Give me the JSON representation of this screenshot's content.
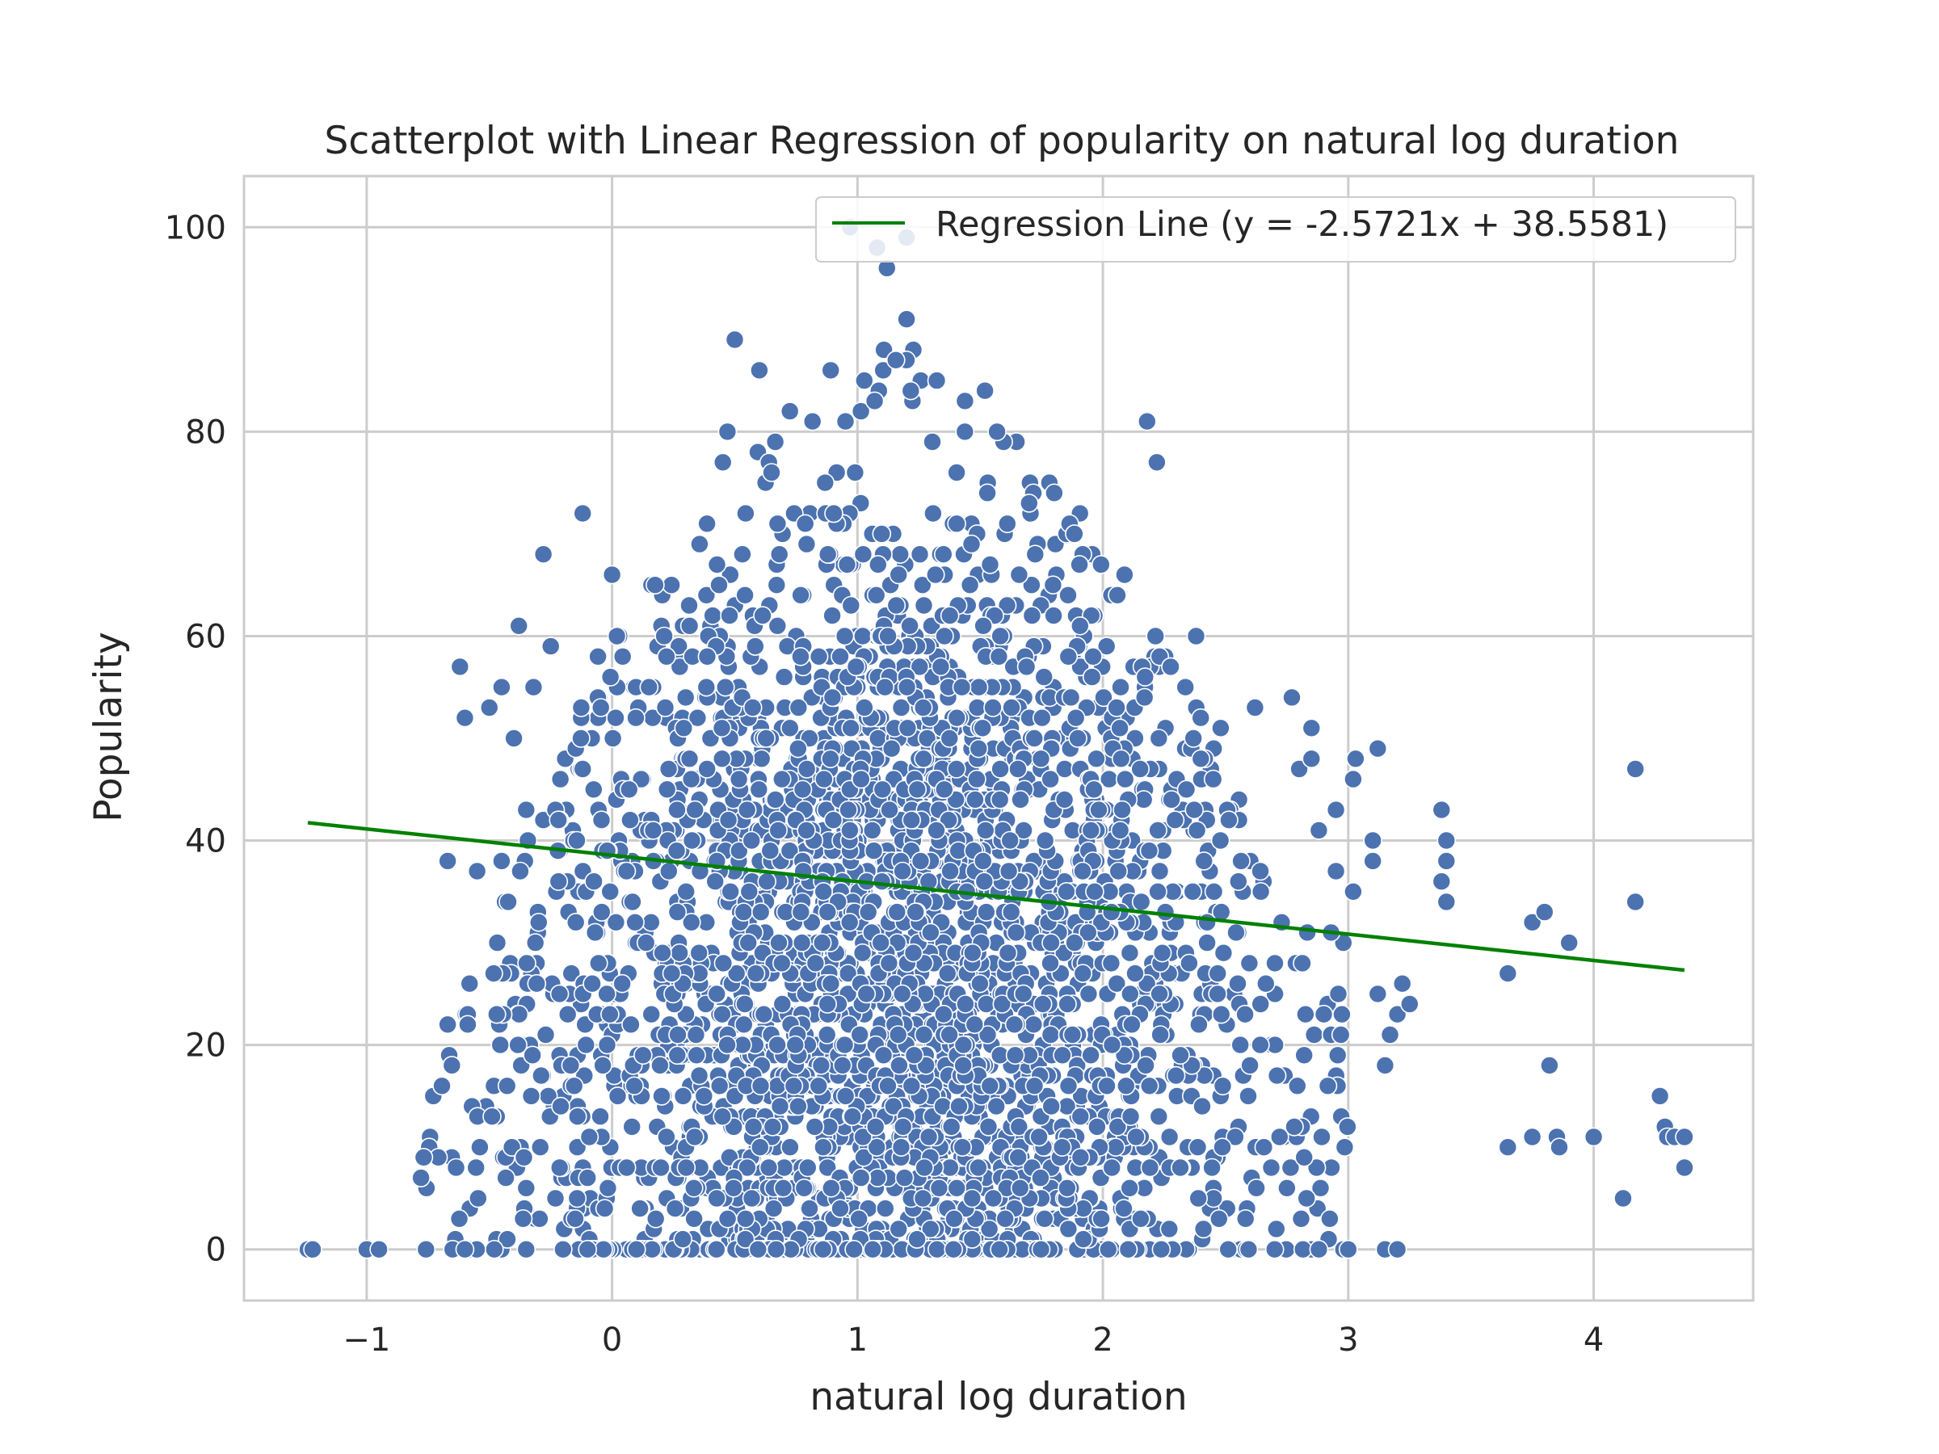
{
  "chart_data": {
    "type": "scatter",
    "title": "Scatterplot with Linear Regression of popularity on natural log duration",
    "xlabel": "natural log duration",
    "ylabel": "Popularity",
    "xlim": [
      -1.5,
      4.65
    ],
    "ylim": [
      -5,
      105
    ],
    "x_ticks": [
      -1,
      0,
      1,
      2,
      3,
      4
    ],
    "x_tick_labels": [
      "−1",
      "0",
      "1",
      "2",
      "3",
      "4"
    ],
    "y_ticks": [
      0,
      20,
      40,
      60,
      80,
      100
    ],
    "y_tick_labels": [
      "0",
      "20",
      "40",
      "60",
      "80",
      "100"
    ],
    "grid": true,
    "legend_position": "top-right",
    "colors": {
      "points": "#4c72b0",
      "regression": "#008000",
      "grid": "#cccccc",
      "frame": "#cccccc"
    },
    "regression": {
      "name": "Regression Line (y = -2.5721x + 38.5581)",
      "slope": -2.5721,
      "intercept": 38.5581,
      "x_range": [
        -1.24,
        4.37
      ]
    },
    "density_model": {
      "x_center": 1.15,
      "x_spread": 0.75,
      "y_center": 30,
      "y_spread": 22,
      "envelope": [
        [
          -0.75,
          20
        ],
        [
          -0.5,
          30
        ],
        [
          0.0,
          62
        ],
        [
          0.5,
          80
        ],
        [
          0.9,
          88
        ],
        [
          1.2,
          92
        ],
        [
          1.5,
          86
        ],
        [
          2.0,
          70
        ],
        [
          2.3,
          58
        ],
        [
          2.6,
          42
        ],
        [
          2.9,
          32
        ],
        [
          3.0,
          28
        ]
      ],
      "count": 3200
    },
    "sparse_points": [
      {
        "x": -1.24,
        "y": 0
      },
      {
        "x": -1.22,
        "y": 0
      },
      {
        "x": -1.0,
        "y": 0
      },
      {
        "x": -0.95,
        "y": 0
      },
      {
        "x": -0.65,
        "y": 0
      },
      {
        "x": -0.6,
        "y": 0
      },
      {
        "x": -0.48,
        "y": 0
      },
      {
        "x": -0.35,
        "y": 0
      },
      {
        "x": -0.2,
        "y": 0
      },
      {
        "x": -0.1,
        "y": 0
      },
      {
        "x": -0.67,
        "y": 38
      },
      {
        "x": -0.67,
        "y": 22
      },
      {
        "x": -0.62,
        "y": 57
      },
      {
        "x": -0.6,
        "y": 52
      },
      {
        "x": -0.5,
        "y": 53
      },
      {
        "x": -0.45,
        "y": 55
      },
      {
        "x": -0.4,
        "y": 50
      },
      {
        "x": -0.38,
        "y": 61
      },
      {
        "x": -0.32,
        "y": 55
      },
      {
        "x": -0.28,
        "y": 68
      },
      {
        "x": -0.25,
        "y": 59
      },
      {
        "x": -0.12,
        "y": 72
      },
      {
        "x": -0.35,
        "y": 43
      },
      {
        "x": -0.35,
        "y": 6
      },
      {
        "x": -0.15,
        "y": 3
      },
      {
        "x": -0.1,
        "y": 7
      },
      {
        "x": -0.55,
        "y": 37
      },
      {
        "x": -0.45,
        "y": 38
      },
      {
        "x": 0.0,
        "y": 66
      },
      {
        "x": 0.47,
        "y": 80
      },
      {
        "x": 0.5,
        "y": 89
      },
      {
        "x": 0.6,
        "y": 86
      },
      {
        "x": 0.97,
        "y": 100
      },
      {
        "x": 1.08,
        "y": 98
      },
      {
        "x": 1.2,
        "y": 99
      },
      {
        "x": 1.12,
        "y": 96
      },
      {
        "x": 2.18,
        "y": 81
      },
      {
        "x": 2.22,
        "y": 77
      },
      {
        "x": 2.38,
        "y": 60
      },
      {
        "x": 2.48,
        "y": 51
      },
      {
        "x": 2.62,
        "y": 53
      },
      {
        "x": 2.77,
        "y": 54
      },
      {
        "x": 2.85,
        "y": 51
      },
      {
        "x": 2.8,
        "y": 47
      },
      {
        "x": 2.85,
        "y": 48
      },
      {
        "x": 2.88,
        "y": 41
      },
      {
        "x": 2.95,
        "y": 43
      },
      {
        "x": 3.02,
        "y": 46
      },
      {
        "x": 3.03,
        "y": 48
      },
      {
        "x": 3.12,
        "y": 49
      },
      {
        "x": 3.1,
        "y": 40
      },
      {
        "x": 3.1,
        "y": 38
      },
      {
        "x": 3.02,
        "y": 35
      },
      {
        "x": 2.95,
        "y": 37
      },
      {
        "x": 2.98,
        "y": 30
      },
      {
        "x": 2.93,
        "y": 31
      },
      {
        "x": 2.9,
        "y": 23
      },
      {
        "x": 2.93,
        "y": 21
      },
      {
        "x": 2.97,
        "y": 21
      },
      {
        "x": 2.82,
        "y": 19
      },
      {
        "x": 2.78,
        "y": 12
      },
      {
        "x": 2.72,
        "y": 11
      },
      {
        "x": 2.82,
        "y": 9
      },
      {
        "x": 2.75,
        "y": 6
      },
      {
        "x": 2.83,
        "y": 5
      },
      {
        "x": 2.92,
        "y": 1
      },
      {
        "x": 2.88,
        "y": 0
      },
      {
        "x": 2.98,
        "y": 0
      },
      {
        "x": 3.0,
        "y": 0
      },
      {
        "x": 2.7,
        "y": 0
      },
      {
        "x": 3.15,
        "y": 0
      },
      {
        "x": 3.2,
        "y": 0
      },
      {
        "x": 3.12,
        "y": 25
      },
      {
        "x": 3.17,
        "y": 21
      },
      {
        "x": 3.15,
        "y": 18
      },
      {
        "x": 3.2,
        "y": 23
      },
      {
        "x": 3.22,
        "y": 26
      },
      {
        "x": 3.25,
        "y": 24
      },
      {
        "x": 3.38,
        "y": 43
      },
      {
        "x": 3.4,
        "y": 40
      },
      {
        "x": 3.4,
        "y": 38
      },
      {
        "x": 3.38,
        "y": 36
      },
      {
        "x": 3.4,
        "y": 34
      },
      {
        "x": 3.65,
        "y": 27
      },
      {
        "x": 3.65,
        "y": 10
      },
      {
        "x": 3.75,
        "y": 11
      },
      {
        "x": 3.75,
        "y": 32
      },
      {
        "x": 3.8,
        "y": 33
      },
      {
        "x": 3.82,
        "y": 18
      },
      {
        "x": 3.85,
        "y": 11
      },
      {
        "x": 3.86,
        "y": 10
      },
      {
        "x": 3.9,
        "y": 30
      },
      {
        "x": 4.0,
        "y": 11
      },
      {
        "x": 4.12,
        "y": 5
      },
      {
        "x": 4.17,
        "y": 47
      },
      {
        "x": 4.17,
        "y": 34
      },
      {
        "x": 4.27,
        "y": 15
      },
      {
        "x": 4.29,
        "y": 12
      },
      {
        "x": 4.3,
        "y": 11
      },
      {
        "x": 4.33,
        "y": 11
      },
      {
        "x": 4.37,
        "y": 11
      },
      {
        "x": 4.37,
        "y": 8
      }
    ]
  }
}
